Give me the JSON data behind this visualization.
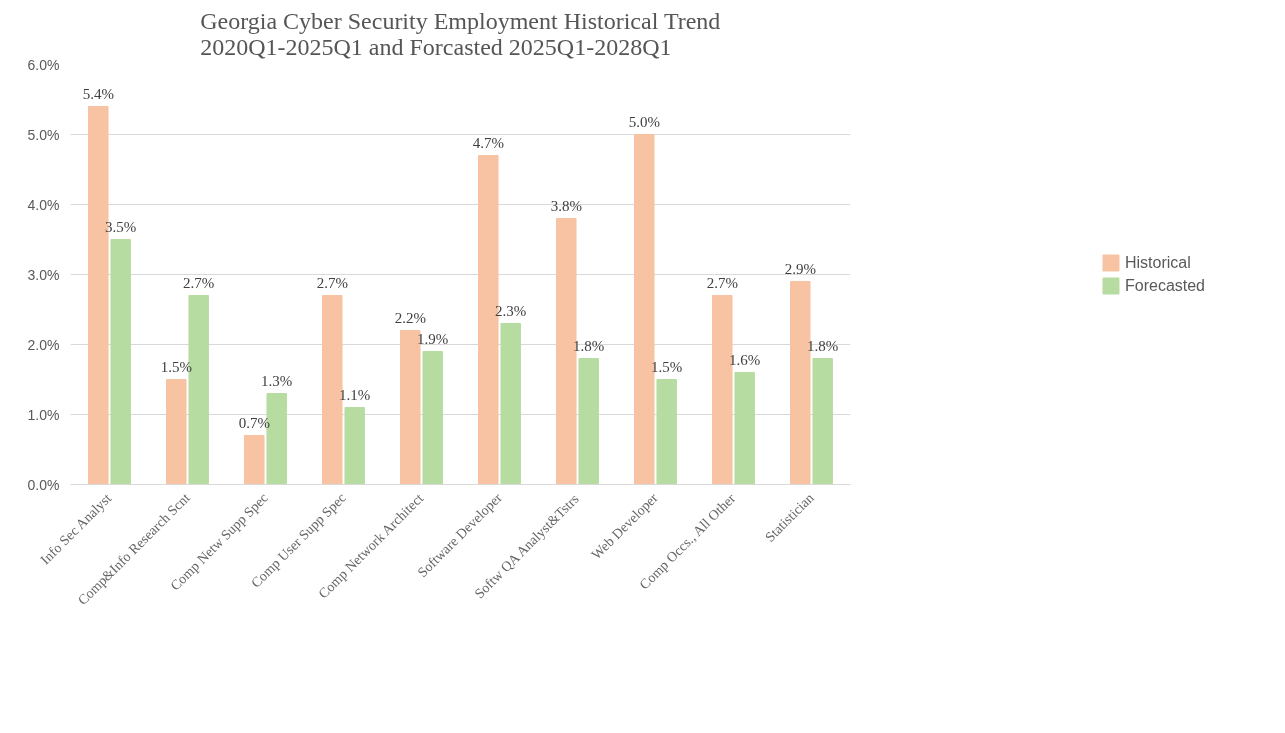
{
  "chart_data": {
    "type": "bar",
    "title": "Georgia Cyber Security Employment Historical Trend\n2020Q1-2025Q1 and Forcasted 2025Q1-2028Q1",
    "categories": [
      "Info Sec Analyst",
      "Comp&Info Research Scnt",
      "Comp Netw Supp Spec",
      "Comp User Supp Spec",
      "Comp Network Architect",
      "Software Developer",
      "Softw QA Analyst&Tstrs",
      "Web Developer",
      "Comp Occs., All Other",
      "Statistician"
    ],
    "series": [
      {
        "name": "Historical",
        "color": "#f8c3a3",
        "values": [
          5.4,
          1.5,
          0.7,
          2.7,
          2.2,
          4.7,
          3.8,
          5.0,
          2.7,
          2.9
        ],
        "value_labels": [
          "5.4%",
          "1.5%",
          "0.7%",
          "2.7%",
          "2.2%",
          "4.7%",
          "3.8%",
          "5.0%",
          "2.7%",
          "2.9%"
        ]
      },
      {
        "name": "Forecasted",
        "color": "#b7dca2",
        "values": [
          3.5,
          2.7,
          1.3,
          1.1,
          1.9,
          2.3,
          1.8,
          1.5,
          1.6,
          1.8
        ],
        "value_labels": [
          "3.5%",
          "2.7%",
          "1.3%",
          "1.1%",
          "1.9%",
          "2.3%",
          "1.8%",
          "1.5%",
          "1.6%",
          "1.8%"
        ]
      }
    ],
    "ylim": [
      0,
      6
    ],
    "yticks": [
      {
        "value": 0,
        "label": "0.0%"
      },
      {
        "value": 1,
        "label": "1.0%"
      },
      {
        "value": 2,
        "label": "2.0%"
      },
      {
        "value": 3,
        "label": "3.0%"
      },
      {
        "value": 4,
        "label": "4.0%"
      },
      {
        "value": 5,
        "label": "5.0%"
      },
      {
        "value": 6,
        "label": "6.0%"
      }
    ],
    "grid": "y",
    "legend": "right"
  }
}
